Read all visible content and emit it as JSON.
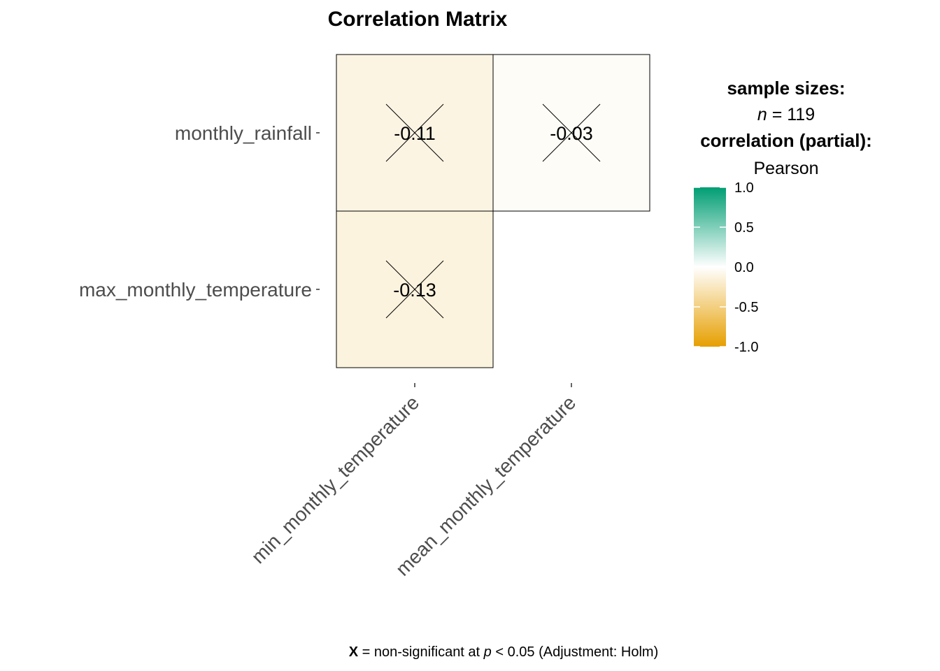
{
  "chart_data": {
    "type": "heatmap",
    "title": "Correlation Matrix",
    "rows": [
      "monthly_rainfall",
      "max_monthly_temperature"
    ],
    "columns": [
      "min_monthly_temperature",
      "mean_monthly_temperature"
    ],
    "cells": [
      {
        "row": "monthly_rainfall",
        "column": "min_monthly_temperature",
        "value": -0.11,
        "label": "-0.11",
        "non_significant": true
      },
      {
        "row": "monthly_rainfall",
        "column": "mean_monthly_temperature",
        "value": -0.03,
        "label": "-0.03",
        "non_significant": true
      },
      {
        "row": "max_monthly_temperature",
        "column": "min_monthly_temperature",
        "value": -0.13,
        "label": "-0.13",
        "non_significant": true
      }
    ],
    "color_scale": {
      "min": -1.0,
      "mid": 0.0,
      "max": 1.0,
      "low_color": "#E69F00",
      "mid_color": "#FFFFFF",
      "high_color": "#009E73",
      "ticks": [
        "1.0",
        "0.5",
        "0.0",
        "-0.5",
        "-1.0"
      ]
    },
    "legend": {
      "placement": "right",
      "sample_sizes_heading": "sample sizes:",
      "n_symbol": "n",
      "n_rest": " = 119",
      "correlation_heading": "correlation (partial):",
      "method": "Pearson"
    },
    "caption": {
      "mark": "X",
      "part1": " = non-significant at ",
      "p_symbol": "p",
      "part2": " < 0.05 (Adjustment: Holm)"
    }
  }
}
